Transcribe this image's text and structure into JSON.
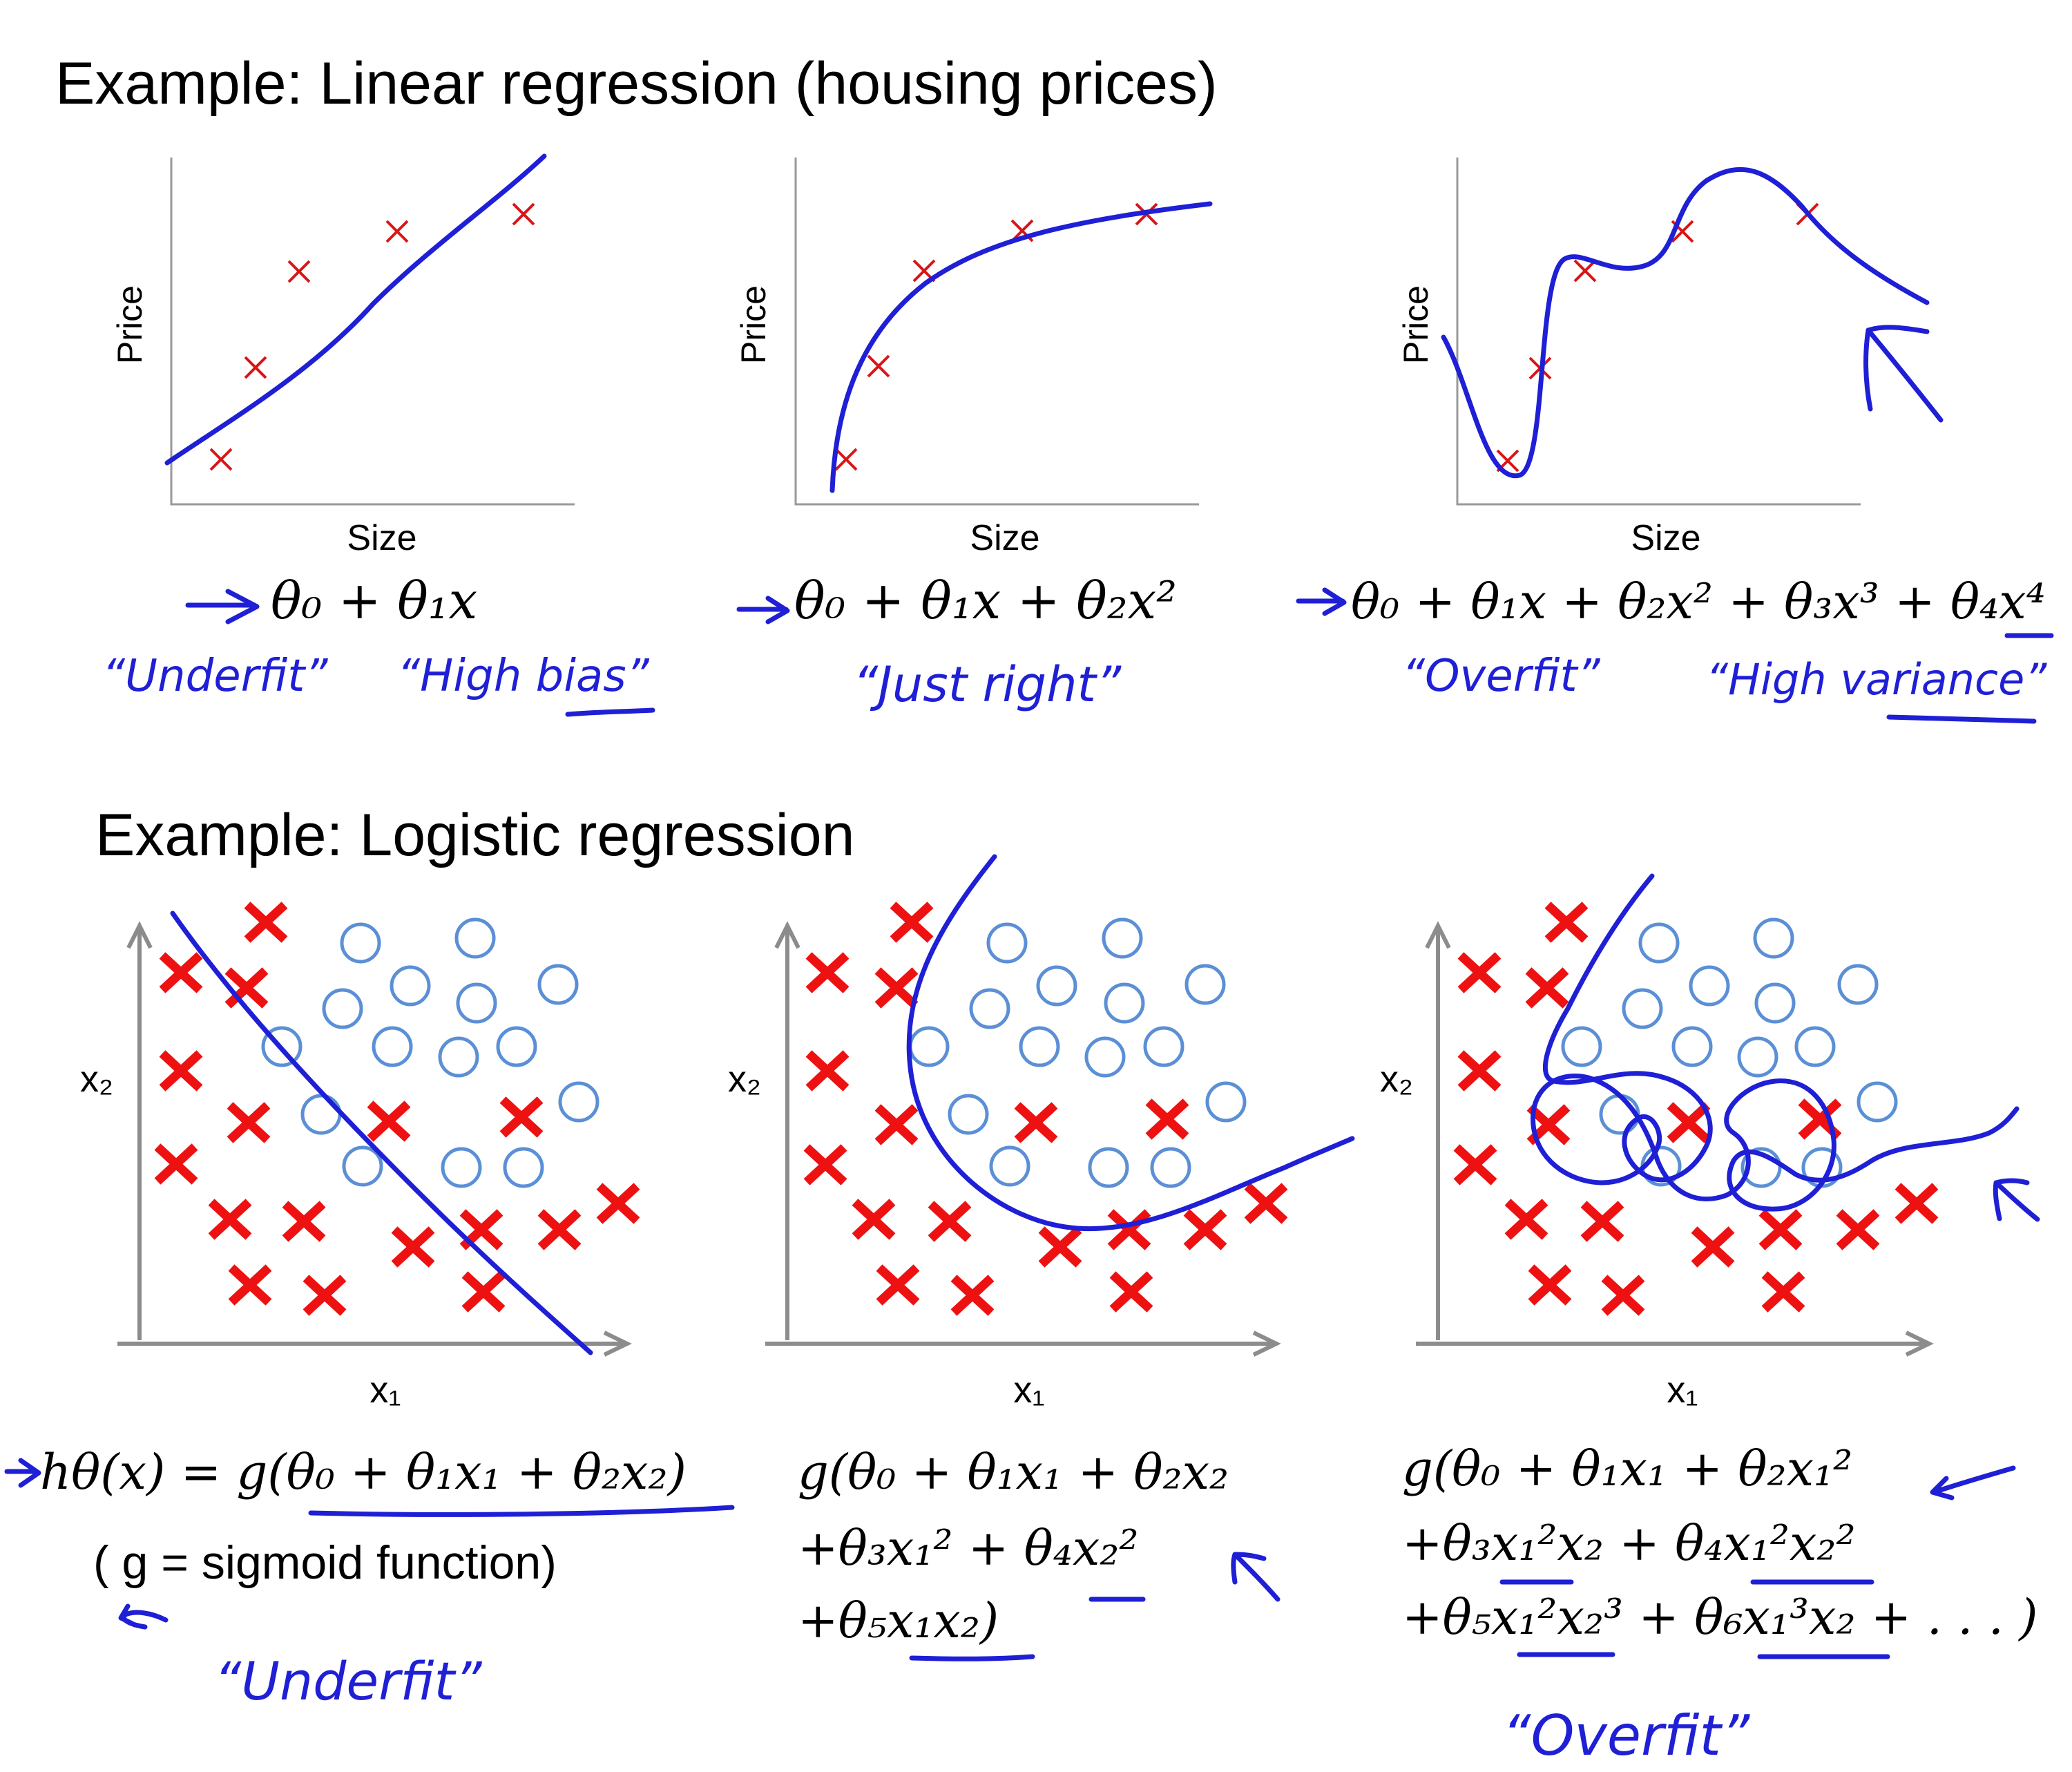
{
  "top": {
    "title": "Example: Linear regression (housing prices)",
    "plots": [
      {
        "xlabel": "Size",
        "ylabel": "Price",
        "formula": "θ₀ + θ₁x",
        "notes": [
          "“Underfit”",
          "“High bias”"
        ]
      },
      {
        "xlabel": "Size",
        "ylabel": "Price",
        "formula": "θ₀ + θ₁x + θ₂x²",
        "notes": [
          "“Just right”"
        ]
      },
      {
        "xlabel": "Size",
        "ylabel": "Price",
        "formula": "θ₀ + θ₁x + θ₂x² + θ₃x³ + θ₄x⁴",
        "notes": [
          "“Overfit”",
          "“High variance”"
        ]
      }
    ]
  },
  "bottom": {
    "title": "Example: Logistic regression",
    "plots": [
      {
        "xlabel": "x₁",
        "ylabel": "x₂",
        "formula_lines": [
          "hθ(x) = g(θ₀ + θ₁x₁ + θ₂x₂)"
        ],
        "subnote": "( g = sigmoid function)",
        "notes": [
          "“Underfit”"
        ]
      },
      {
        "xlabel": "x₁",
        "ylabel": "x₂",
        "formula_lines": [
          "g(θ₀ + θ₁x₁ + θ₂x₂",
          "+θ₃x₁² + θ₄x₂²",
          "+θ₅x₁x₂)"
        ],
        "notes": []
      },
      {
        "xlabel": "x₁",
        "ylabel": "x₂",
        "formula_lines": [
          "g(θ₀ + θ₁x₁ + θ₂x₁²",
          "+θ₃x₁²x₂ + θ₄x₁²x₂²",
          "+θ₅x₁²x₂³ + θ₆x₁³x₂ + . . . )"
        ],
        "notes": [
          "“Overfit”"
        ]
      }
    ]
  },
  "colors": {
    "ink": "#1f1fd6",
    "cross": "#e81010",
    "circle": "#5b8fd6",
    "axis": "#999999"
  },
  "chart_data": [
    {
      "type": "scatter",
      "xlabel": "Size",
      "ylabel": "Price",
      "x": [
        1,
        2,
        3,
        4,
        5
      ],
      "y": [
        1,
        3,
        5,
        6,
        6.5
      ],
      "fit": "linear: θ₀ + θ₁x"
    },
    {
      "type": "scatter",
      "xlabel": "Size",
      "ylabel": "Price",
      "x": [
        1,
        2,
        3,
        4,
        5
      ],
      "y": [
        1,
        3,
        5,
        6,
        6.5
      ],
      "fit": "quadratic: θ₀ + θ₁x + θ₂x²"
    },
    {
      "type": "scatter",
      "xlabel": "Size",
      "ylabel": "Price",
      "x": [
        1,
        2,
        3,
        4,
        5
      ],
      "y": [
        1,
        3,
        5,
        6,
        6.5
      ],
      "fit": "quartic: θ₀ + θ₁x + θ₂x² + θ₃x³ + θ₄x⁴"
    }
  ]
}
